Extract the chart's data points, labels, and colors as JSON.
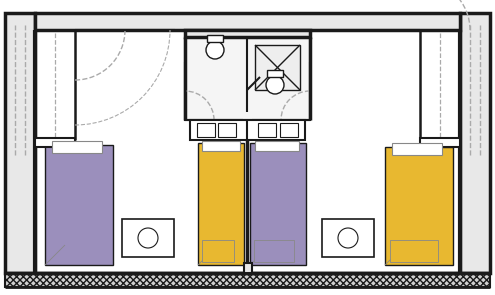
{
  "bg_color": "#ffffff",
  "wall_color": "#1a1a1a",
  "dashed_color": "#aaaaaa",
  "purple_color": "#9b8fbc",
  "yellow_color": "#e8b830",
  "fig_width": 4.95,
  "fig_height": 2.95
}
